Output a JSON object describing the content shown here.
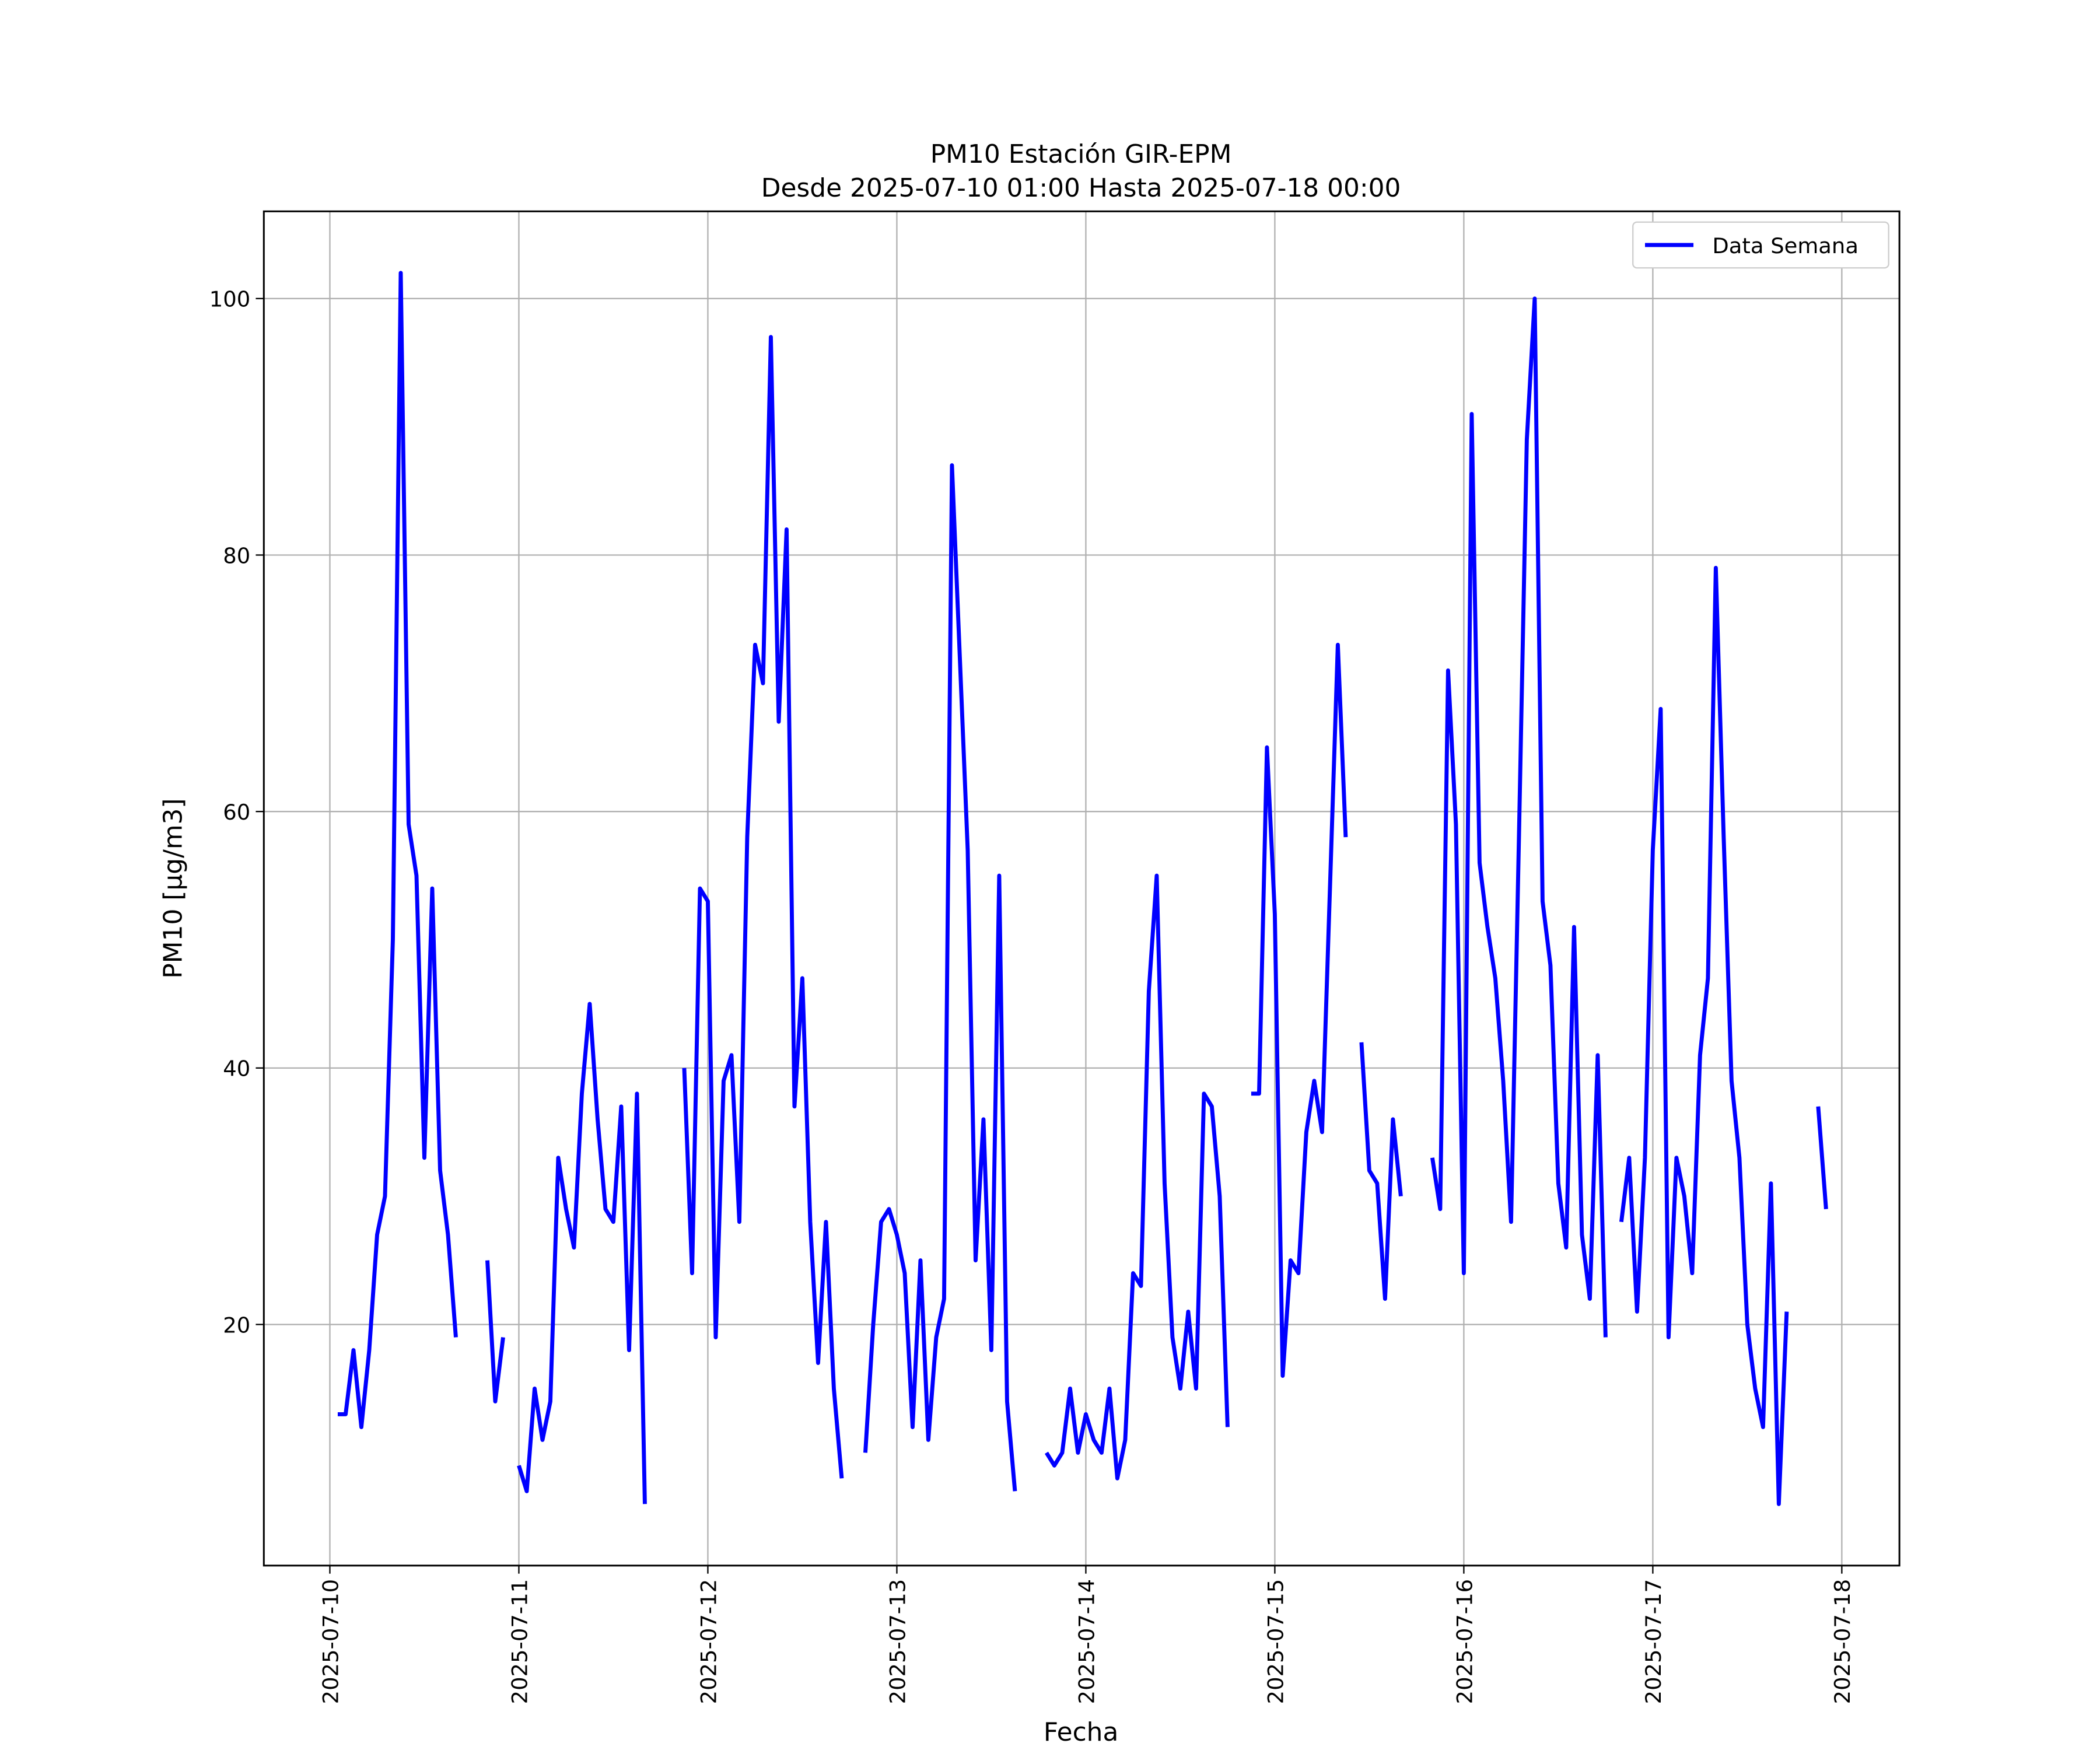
{
  "chart_data": {
    "type": "line",
    "title": "PM10 Estación GIR-EPM",
    "subtitle": "Desde 2025-07-10 01:00 Hasta 2025-07-18 00:00",
    "xlabel": "Fecha",
    "ylabel": "PM10 [μg/m3]",
    "x": [
      "2025-07-10 01:00",
      "2025-07-10 02:00",
      "2025-07-10 03:00",
      "2025-07-10 04:00",
      "2025-07-10 05:00",
      "2025-07-10 06:00",
      "2025-07-10 07:00",
      "2025-07-10 08:00",
      "2025-07-10 09:00",
      "2025-07-10 10:00",
      "2025-07-10 11:00",
      "2025-07-10 12:00",
      "2025-07-10 13:00",
      "2025-07-10 14:00",
      "2025-07-10 15:00",
      "2025-07-10 16:00",
      "2025-07-10 17:00",
      "2025-07-10 18:00",
      "2025-07-10 19:00",
      "2025-07-10 20:00",
      "2025-07-10 21:00",
      "2025-07-10 22:00",
      "2025-07-10 23:00",
      "2025-07-11 00:00",
      "2025-07-11 01:00",
      "2025-07-11 02:00",
      "2025-07-11 03:00",
      "2025-07-11 04:00",
      "2025-07-11 05:00",
      "2025-07-11 06:00",
      "2025-07-11 07:00",
      "2025-07-11 08:00",
      "2025-07-11 09:00",
      "2025-07-11 10:00",
      "2025-07-11 11:00",
      "2025-07-11 12:00",
      "2025-07-11 13:00",
      "2025-07-11 14:00",
      "2025-07-11 15:00",
      "2025-07-11 16:00",
      "2025-07-11 17:00",
      "2025-07-11 18:00",
      "2025-07-11 19:00",
      "2025-07-11 20:00",
      "2025-07-11 21:00",
      "2025-07-11 22:00",
      "2025-07-11 23:00",
      "2025-07-12 00:00",
      "2025-07-12 01:00",
      "2025-07-12 02:00",
      "2025-07-12 03:00",
      "2025-07-12 04:00",
      "2025-07-12 05:00",
      "2025-07-12 06:00",
      "2025-07-12 07:00",
      "2025-07-12 08:00",
      "2025-07-12 09:00",
      "2025-07-12 10:00",
      "2025-07-12 11:00",
      "2025-07-12 12:00",
      "2025-07-12 13:00",
      "2025-07-12 14:00",
      "2025-07-12 15:00",
      "2025-07-12 16:00",
      "2025-07-12 17:00",
      "2025-07-12 18:00",
      "2025-07-12 19:00",
      "2025-07-12 20:00",
      "2025-07-12 21:00",
      "2025-07-12 22:00",
      "2025-07-12 23:00",
      "2025-07-13 00:00",
      "2025-07-13 01:00",
      "2025-07-13 02:00",
      "2025-07-13 03:00",
      "2025-07-13 04:00",
      "2025-07-13 05:00",
      "2025-07-13 06:00",
      "2025-07-13 07:00",
      "2025-07-13 08:00",
      "2025-07-13 09:00",
      "2025-07-13 10:00",
      "2025-07-13 11:00",
      "2025-07-13 12:00",
      "2025-07-13 13:00",
      "2025-07-13 14:00",
      "2025-07-13 15:00",
      "2025-07-13 16:00",
      "2025-07-13 17:00",
      "2025-07-13 18:00",
      "2025-07-13 19:00",
      "2025-07-13 20:00",
      "2025-07-13 21:00",
      "2025-07-13 22:00",
      "2025-07-13 23:00",
      "2025-07-14 00:00",
      "2025-07-14 01:00",
      "2025-07-14 02:00",
      "2025-07-14 03:00",
      "2025-07-14 04:00",
      "2025-07-14 05:00",
      "2025-07-14 06:00",
      "2025-07-14 07:00",
      "2025-07-14 08:00",
      "2025-07-14 09:00",
      "2025-07-14 10:00",
      "2025-07-14 11:00",
      "2025-07-14 12:00",
      "2025-07-14 13:00",
      "2025-07-14 14:00",
      "2025-07-14 15:00",
      "2025-07-14 16:00",
      "2025-07-14 17:00",
      "2025-07-14 18:00",
      "2025-07-14 19:00",
      "2025-07-14 20:00",
      "2025-07-14 21:00",
      "2025-07-14 22:00",
      "2025-07-14 23:00",
      "2025-07-15 00:00",
      "2025-07-15 01:00",
      "2025-07-15 02:00",
      "2025-07-15 03:00",
      "2025-07-15 04:00",
      "2025-07-15 05:00",
      "2025-07-15 06:00",
      "2025-07-15 07:00",
      "2025-07-15 08:00",
      "2025-07-15 09:00",
      "2025-07-15 10:00",
      "2025-07-15 11:00",
      "2025-07-15 12:00",
      "2025-07-15 13:00",
      "2025-07-15 14:00",
      "2025-07-15 15:00",
      "2025-07-15 16:00",
      "2025-07-15 17:00",
      "2025-07-15 18:00",
      "2025-07-15 19:00",
      "2025-07-15 20:00",
      "2025-07-15 21:00",
      "2025-07-15 22:00",
      "2025-07-15 23:00",
      "2025-07-16 00:00",
      "2025-07-16 01:00",
      "2025-07-16 02:00",
      "2025-07-16 03:00",
      "2025-07-16 04:00",
      "2025-07-16 05:00",
      "2025-07-16 06:00",
      "2025-07-16 07:00",
      "2025-07-16 08:00",
      "2025-07-16 09:00",
      "2025-07-16 10:00",
      "2025-07-16 11:00",
      "2025-07-16 12:00",
      "2025-07-16 13:00",
      "2025-07-16 14:00",
      "2025-07-16 15:00",
      "2025-07-16 16:00",
      "2025-07-16 17:00",
      "2025-07-16 18:00",
      "2025-07-16 19:00",
      "2025-07-16 20:00",
      "2025-07-16 21:00",
      "2025-07-16 22:00",
      "2025-07-16 23:00",
      "2025-07-17 00:00",
      "2025-07-17 01:00",
      "2025-07-17 02:00",
      "2025-07-17 03:00",
      "2025-07-17 04:00",
      "2025-07-17 05:00",
      "2025-07-17 06:00",
      "2025-07-17 07:00",
      "2025-07-17 08:00",
      "2025-07-17 09:00",
      "2025-07-17 10:00",
      "2025-07-17 11:00",
      "2025-07-17 12:00",
      "2025-07-17 13:00",
      "2025-07-17 14:00",
      "2025-07-17 15:00",
      "2025-07-17 16:00",
      "2025-07-17 17:00",
      "2025-07-17 18:00",
      "2025-07-17 19:00",
      "2025-07-17 20:00",
      "2025-07-17 21:00",
      "2025-07-17 22:00",
      "2025-07-17 23:00",
      "2025-07-18 00:00"
    ],
    "series": [
      {
        "name": "Data Semana",
        "color": "#0000ff",
        "values": [
          13,
          13,
          18,
          12,
          18,
          27,
          30,
          50,
          102,
          59,
          55,
          33,
          54,
          32,
          27,
          19,
          null,
          null,
          null,
          25,
          14,
          19,
          null,
          9,
          7,
          15,
          11,
          14,
          33,
          29,
          26,
          38,
          45,
          36,
          29,
          28,
          37,
          18,
          38,
          6,
          null,
          null,
          null,
          null,
          40,
          24,
          54,
          53,
          19,
          39,
          41,
          28,
          58,
          73,
          70,
          97,
          67,
          82,
          37,
          47,
          28,
          17,
          28,
          15,
          8,
          null,
          null,
          10,
          20,
          28,
          29,
          27,
          24,
          12,
          25,
          11,
          19,
          22,
          87,
          72,
          57,
          25,
          36,
          18,
          55,
          14,
          7,
          null,
          null,
          null,
          10,
          9,
          10,
          15,
          10,
          13,
          11,
          10,
          15,
          8,
          11,
          24,
          23,
          46,
          55,
          31,
          19,
          15,
          21,
          15,
          38,
          37,
          30,
          12,
          null,
          null,
          38,
          38,
          65,
          52,
          16,
          25,
          24,
          35,
          39,
          35,
          54,
          73,
          58,
          null,
          42,
          32,
          31,
          22,
          36,
          30,
          null,
          null,
          null,
          33,
          29,
          71,
          59,
          24,
          91,
          56,
          51,
          47,
          39,
          28,
          58,
          89,
          100,
          53,
          48,
          31,
          26,
          51,
          27,
          22,
          41,
          19,
          null,
          28,
          33,
          21,
          33,
          57,
          68,
          19,
          33,
          30,
          24,
          41,
          47,
          79,
          58,
          39,
          33,
          20,
          15,
          12,
          31,
          6,
          21,
          null,
          null,
          null,
          37,
          29,
          null,
          null
        ]
      }
    ],
    "xlim": [
      "2025-07-09 15:37",
      "2025-07-18 07:19"
    ],
    "xticks": [
      "2025-07-10",
      "2025-07-11",
      "2025-07-12",
      "2025-07-13",
      "2025-07-14",
      "2025-07-15",
      "2025-07-16",
      "2025-07-17",
      "2025-07-18"
    ],
    "ylim": [
      1.2,
      106.8
    ],
    "yticks": [
      20,
      40,
      60,
      80,
      100
    ],
    "grid": true,
    "legend": "upper right"
  }
}
